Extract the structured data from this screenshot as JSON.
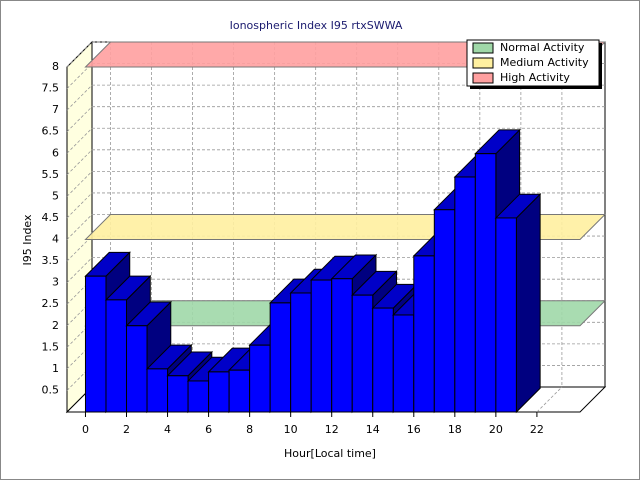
{
  "chart_data": {
    "type": "bar3d",
    "title": "Ionospheric Index I95 rtxSWWA",
    "x_label": "Hour[Local time]",
    "y_label": "I95 Index",
    "x": [
      0,
      1,
      2,
      3,
      4,
      5,
      6,
      7,
      8,
      9,
      10,
      11,
      12,
      13,
      14,
      15,
      16,
      17,
      18,
      19,
      20
    ],
    "values": [
      3.15,
      2.6,
      2.0,
      1.0,
      0.84,
      0.72,
      0.93,
      0.97,
      1.55,
      2.53,
      2.76,
      3.06,
      3.09,
      2.71,
      2.41,
      2.25,
      3.62,
      4.69,
      5.45,
      5.99,
      4.5
    ],
    "color": "#0000ff",
    "xlim": [
      -0.9,
      24.1
    ],
    "xticks": [
      0,
      2,
      4,
      6,
      8,
      10,
      12,
      14,
      16,
      18,
      20,
      22
    ],
    "ylim": [
      0,
      8
    ],
    "yticks": [
      0.5,
      1,
      1.5,
      2,
      2.5,
      3,
      3.5,
      4,
      4.5,
      5,
      5.5,
      6,
      6.5,
      7,
      7.5,
      8
    ],
    "grid": true,
    "legend": "top-right",
    "bands": [
      {
        "name": "Normal Activity",
        "value": 2,
        "color": "#a0d8a8"
      },
      {
        "name": "Medium Activity",
        "value": 4,
        "color": "#fff0a0"
      },
      {
        "name": "High Activity",
        "value": 8,
        "color": "#ffa0a0"
      }
    ]
  }
}
